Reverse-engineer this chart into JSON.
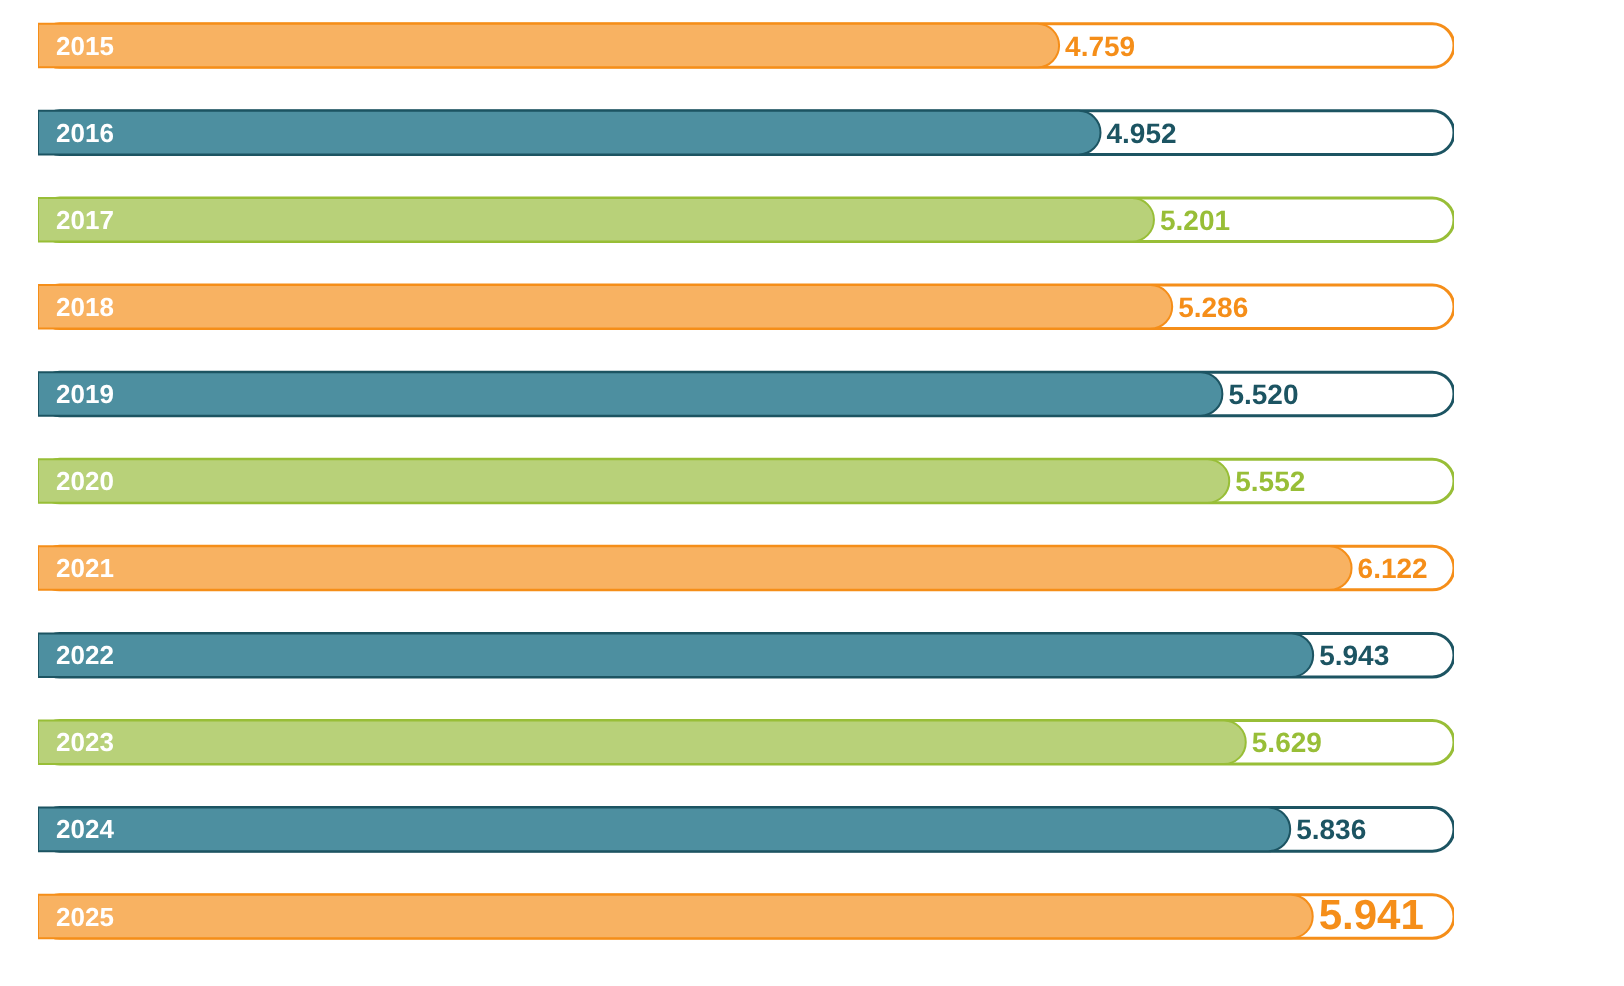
{
  "chart_data": {
    "type": "bar",
    "orientation": "horizontal",
    "categories": [
      "2015",
      "2016",
      "2017",
      "2018",
      "2019",
      "2020",
      "2021",
      "2022",
      "2023",
      "2024",
      "2025"
    ],
    "values": [
      4.759,
      4.952,
      5.201,
      5.286,
      5.52,
      5.552,
      6.122,
      5.943,
      5.629,
      5.836,
      5.941
    ],
    "value_labels": [
      "4.759",
      "4.952",
      "5.201",
      "5.286",
      "5.520",
      "5.552",
      "6.122",
      "5.943",
      "5.629",
      "5.836",
      "5.941"
    ],
    "colors": [
      "#f8b262",
      "#4d8fa0",
      "#b8d179",
      "#f8b262",
      "#4d8fa0",
      "#b8d179",
      "#f8b262",
      "#4d8fa0",
      "#b8d179",
      "#4d8fa0",
      "#f8b262"
    ],
    "tick_labels": "y"
  }
}
